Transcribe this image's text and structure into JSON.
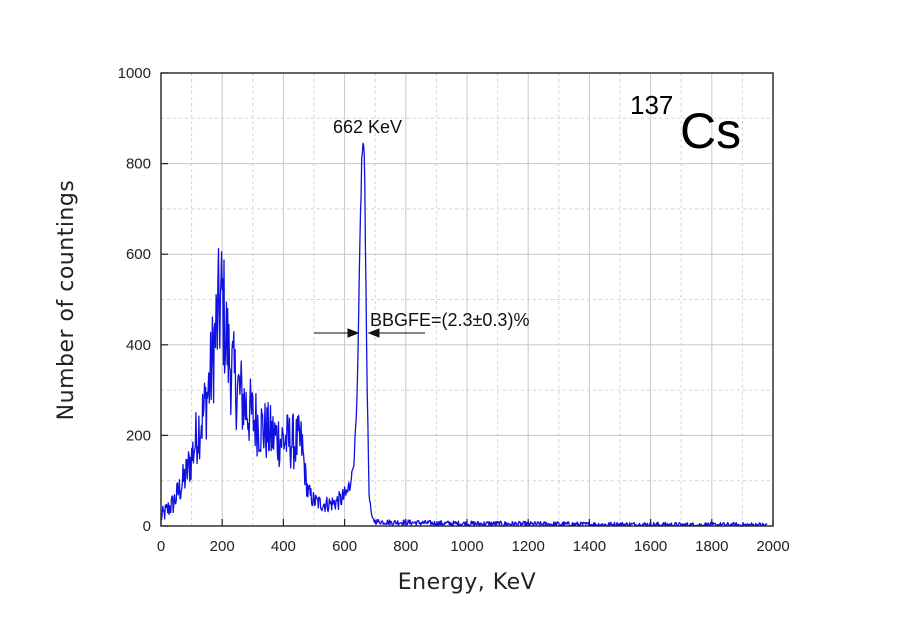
{
  "chart_data": {
    "type": "line",
    "xlabel": "Energy, KeV",
    "ylabel": "Number of countings",
    "xlim": [
      0,
      2000
    ],
    "ylim": [
      0,
      1000
    ],
    "xticks": [
      0,
      200,
      400,
      600,
      800,
      1000,
      1200,
      1400,
      1600,
      1800,
      2000
    ],
    "yticks": [
      0,
      200,
      400,
      600,
      800,
      1000
    ],
    "xtick_labels": [
      "0",
      "200",
      "400",
      "600",
      "800",
      "1000",
      "1200",
      "1400",
      "1600",
      "1800",
      "2000"
    ],
    "ytick_labels": [
      "0",
      "200",
      "400",
      "600",
      "800",
      "1000"
    ],
    "grid": true,
    "series_color": "#1010e0",
    "series": [
      {
        "x": [
          0,
          20,
          40,
          60,
          80,
          100,
          120,
          140,
          160,
          170,
          180,
          190,
          200,
          210,
          220,
          240,
          260,
          280,
          300,
          320,
          340,
          360,
          380,
          400,
          420,
          440,
          460,
          470,
          480,
          500,
          520,
          540,
          560,
          580,
          600,
          610,
          620,
          630,
          640,
          645,
          650,
          655,
          658,
          662,
          666,
          670,
          675,
          680,
          690,
          700,
          750,
          800,
          900,
          1000,
          1100,
          1200,
          1300,
          1400,
          1500,
          1600,
          1700,
          1800,
          1900,
          1980
        ],
        "values": [
          20,
          35,
          50,
          80,
          110,
          150,
          210,
          250,
          320,
          380,
          430,
          480,
          500,
          440,
          380,
          320,
          290,
          260,
          240,
          225,
          210,
          200,
          195,
          190,
          188,
          185,
          180,
          120,
          75,
          55,
          50,
          48,
          50,
          55,
          65,
          75,
          100,
          140,
          260,
          420,
          620,
          780,
          830,
          840,
          760,
          520,
          250,
          70,
          15,
          10,
          8,
          8,
          6,
          5,
          5,
          4,
          4,
          3,
          3,
          3,
          2,
          2,
          2,
          2
        ]
      }
    ],
    "annotations": [
      {
        "text": "662 KeV",
        "x": 662,
        "y": 840
      },
      {
        "text": "BBGFE=(2.3±0.3)%"
      }
    ],
    "isotope_label": {
      "mass": "137",
      "element": "Cs"
    }
  }
}
